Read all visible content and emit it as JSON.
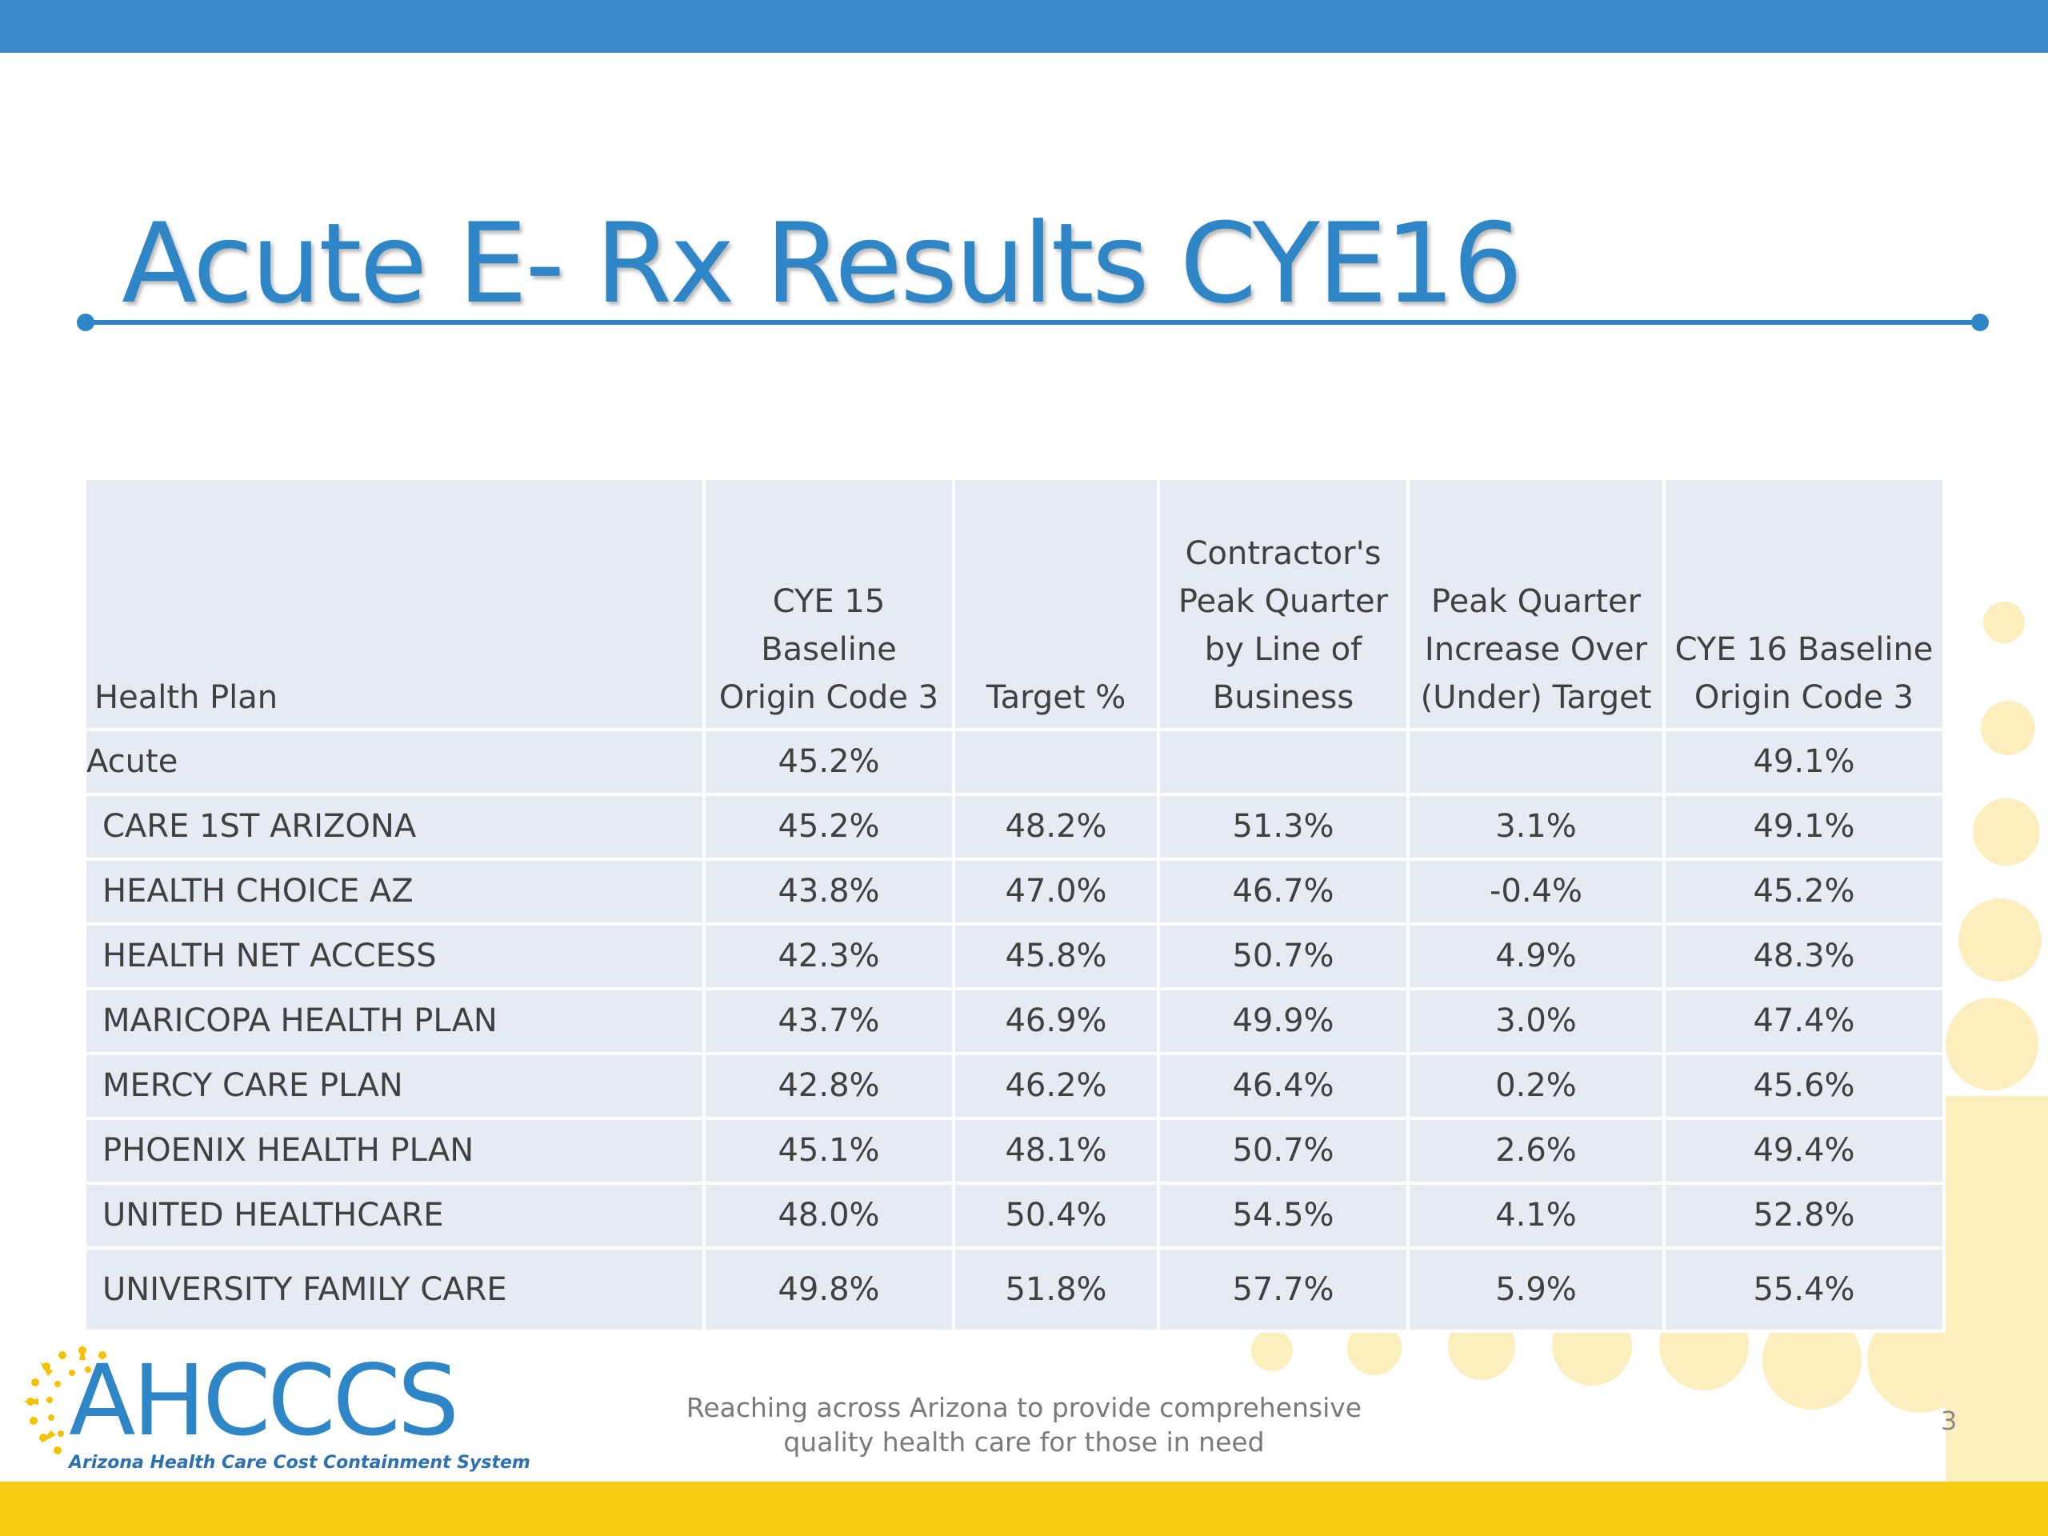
{
  "slide": {
    "title": "Acute E- Rx Results CYE16",
    "page_number": "3"
  },
  "table": {
    "headers": [
      "Health Plan",
      "CYE 15\nBaseline\nOrigin Code 3",
      "Target %",
      "Contractor's\nPeak Quarter\nby Line of\nBusiness",
      "Peak Quarter\nIncrease Over\n(Under) Target",
      "CYE 16 Baseline\nOrigin Code 3"
    ],
    "rows": [
      [
        "Acute",
        "45.2%",
        "",
        "",
        "",
        "49.1%"
      ],
      [
        "CARE 1ST ARIZONA",
        "45.2%",
        "48.2%",
        "51.3%",
        "3.1%",
        "49.1%"
      ],
      [
        "HEALTH CHOICE AZ",
        "43.8%",
        "47.0%",
        "46.7%",
        "-0.4%",
        "45.2%"
      ],
      [
        "HEALTH NET ACCESS",
        "42.3%",
        "45.8%",
        "50.7%",
        "4.9%",
        "48.3%"
      ],
      [
        "MARICOPA HEALTH PLAN",
        "43.7%",
        "46.9%",
        "49.9%",
        "3.0%",
        "47.4%"
      ],
      [
        "MERCY CARE PLAN",
        "42.8%",
        "46.2%",
        "46.4%",
        "0.2%",
        "45.6%"
      ],
      [
        "PHOENIX HEALTH PLAN",
        "45.1%",
        "48.1%",
        "50.7%",
        "2.6%",
        "49.4%"
      ],
      [
        "UNITED HEALTHCARE",
        "48.0%",
        "50.4%",
        "54.5%",
        "4.1%",
        "52.8%"
      ],
      [
        "UNIVERSITY FAMILY CARE",
        "49.8%",
        "51.8%",
        "57.7%",
        "5.9%",
        "55.4%"
      ]
    ]
  },
  "footer": {
    "logo_text": "AHCCCS",
    "logo_subtitle": "Arizona Health Care Cost Containment System",
    "tagline_line1": "Reaching across Arizona to provide comprehensive",
    "tagline_line2": "quality health care for those in need"
  },
  "colors": {
    "accent_blue": "#2f86c6",
    "top_bar": "#3a8ccc",
    "bottom_bar": "#f6cb14",
    "table_fill": "#e6eaf3"
  }
}
